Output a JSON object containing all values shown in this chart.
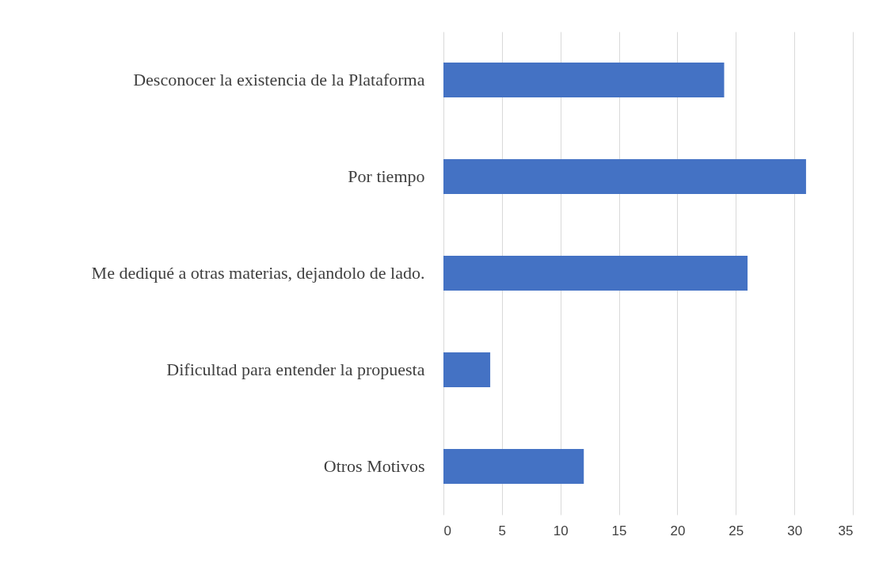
{
  "chart_data": {
    "type": "bar",
    "orientation": "horizontal",
    "categories": [
      "Desconocer la existencia de la Plataforma",
      "Por tiempo",
      "Me dediqué a otras materias, dejandolo de lado.",
      "Dificultad para entender la propuesta",
      "Otros Motivos"
    ],
    "values": [
      24,
      31,
      26,
      4,
      12
    ],
    "color": "#4472c4",
    "xlim": [
      0,
      35
    ],
    "xticks": [
      0,
      5,
      10,
      15,
      20,
      25,
      30,
      35
    ],
    "grid": "x"
  }
}
